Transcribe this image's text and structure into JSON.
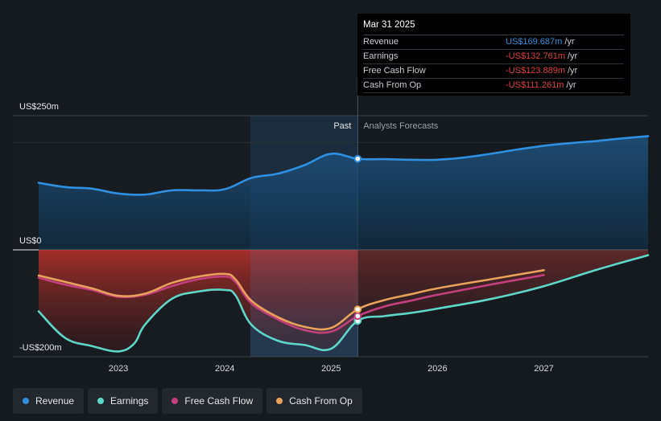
{
  "chart_data": {
    "type": "area",
    "y_axis": {
      "labels": [
        "US$250m",
        "US$0",
        "-US$200m"
      ],
      "ylim": [
        -200,
        250
      ]
    },
    "x_axis": {
      "ticks": [
        "2023",
        "2024",
        "2025",
        "2026",
        "2027"
      ],
      "xlim": [
        2022.25,
        2027.98
      ]
    },
    "regions": {
      "past": "Past",
      "forecast": "Analysts Forecasts",
      "split_x": 2025.25
    },
    "series": [
      {
        "key": "revenue",
        "name": "Revenue",
        "color": "#2f8fe0",
        "points": [
          [
            2022.25,
            125
          ],
          [
            2022.5,
            117
          ],
          [
            2022.75,
            114
          ],
          [
            2023.0,
            105
          ],
          [
            2023.25,
            103
          ],
          [
            2023.5,
            111
          ],
          [
            2023.75,
            111
          ],
          [
            2024.0,
            113
          ],
          [
            2024.25,
            134
          ],
          [
            2024.5,
            142
          ],
          [
            2024.75,
            158
          ],
          [
            2025.0,
            179
          ],
          [
            2025.25,
            169.7
          ],
          [
            2025.5,
            169
          ],
          [
            2025.75,
            168
          ],
          [
            2026.0,
            168
          ],
          [
            2026.25,
            172
          ],
          [
            2026.5,
            179
          ],
          [
            2026.75,
            187
          ],
          [
            2027.0,
            194
          ],
          [
            2027.25,
            199
          ],
          [
            2027.5,
            203
          ],
          [
            2027.75,
            208
          ],
          [
            2027.98,
            212
          ]
        ]
      },
      {
        "key": "earnings",
        "name": "Earnings",
        "color": "#5fd7c8",
        "points": [
          [
            2022.25,
            -115
          ],
          [
            2022.5,
            -165
          ],
          [
            2022.75,
            -180
          ],
          [
            2023.0,
            -190
          ],
          [
            2023.15,
            -175
          ],
          [
            2023.25,
            -140
          ],
          [
            2023.5,
            -92
          ],
          [
            2023.75,
            -78
          ],
          [
            2024.0,
            -75
          ],
          [
            2024.1,
            -85
          ],
          [
            2024.25,
            -140
          ],
          [
            2024.5,
            -170
          ],
          [
            2024.75,
            -178
          ],
          [
            2025.0,
            -185
          ],
          [
            2025.25,
            -132.8
          ],
          [
            2025.5,
            -124
          ],
          [
            2025.75,
            -118
          ],
          [
            2026.0,
            -110
          ],
          [
            2026.5,
            -92
          ],
          [
            2027.0,
            -68
          ],
          [
            2027.5,
            -37
          ],
          [
            2027.98,
            -10
          ]
        ]
      },
      {
        "key": "fcf",
        "name": "Free Cash Flow",
        "color": "#c2407d",
        "points": [
          [
            2022.25,
            -52
          ],
          [
            2022.5,
            -65
          ],
          [
            2022.75,
            -75
          ],
          [
            2023.0,
            -88
          ],
          [
            2023.25,
            -84
          ],
          [
            2023.5,
            -68
          ],
          [
            2023.75,
            -55
          ],
          [
            2024.0,
            -50
          ],
          [
            2024.1,
            -60
          ],
          [
            2024.25,
            -100
          ],
          [
            2024.5,
            -130
          ],
          [
            2024.75,
            -150
          ],
          [
            2025.0,
            -153
          ],
          [
            2025.25,
            -123.9
          ],
          [
            2025.5,
            -106
          ],
          [
            2025.75,
            -95
          ],
          [
            2026.0,
            -84
          ],
          [
            2026.5,
            -65
          ],
          [
            2027.0,
            -47
          ]
        ]
      },
      {
        "key": "cfo",
        "name": "Cash From Op",
        "color": "#e8a15b",
        "points": [
          [
            2022.25,
            -48
          ],
          [
            2022.5,
            -60
          ],
          [
            2022.75,
            -72
          ],
          [
            2023.0,
            -86
          ],
          [
            2023.25,
            -82
          ],
          [
            2023.5,
            -62
          ],
          [
            2023.75,
            -50
          ],
          [
            2024.0,
            -45
          ],
          [
            2024.1,
            -55
          ],
          [
            2024.25,
            -95
          ],
          [
            2024.5,
            -126
          ],
          [
            2024.75,
            -144
          ],
          [
            2025.0,
            -146
          ],
          [
            2025.25,
            -111.3
          ],
          [
            2025.5,
            -94
          ],
          [
            2025.75,
            -83
          ],
          [
            2026.0,
            -72
          ],
          [
            2026.5,
            -55
          ],
          [
            2027.0,
            -38
          ]
        ]
      }
    ]
  },
  "tooltip": {
    "date": "Mar 31 2025",
    "rows": [
      {
        "name": "Revenue",
        "value": "US$169.687m",
        "unit": "/yr",
        "color": "#2f8fe0"
      },
      {
        "name": "Earnings",
        "value": "-US$132.761m",
        "unit": "/yr",
        "color": "#e0403f"
      },
      {
        "name": "Free Cash Flow",
        "value": "-US$123.889m",
        "unit": "/yr",
        "color": "#e0403f"
      },
      {
        "name": "Cash From Op",
        "value": "-US$111.261m",
        "unit": "/yr",
        "color": "#e0403f"
      }
    ]
  },
  "legend": [
    {
      "label": "Revenue",
      "color": "#2f8fe0"
    },
    {
      "label": "Earnings",
      "color": "#5fd7c8"
    },
    {
      "label": "Free Cash Flow",
      "color": "#c2407d"
    },
    {
      "label": "Cash From Op",
      "color": "#e8a15b"
    }
  ]
}
